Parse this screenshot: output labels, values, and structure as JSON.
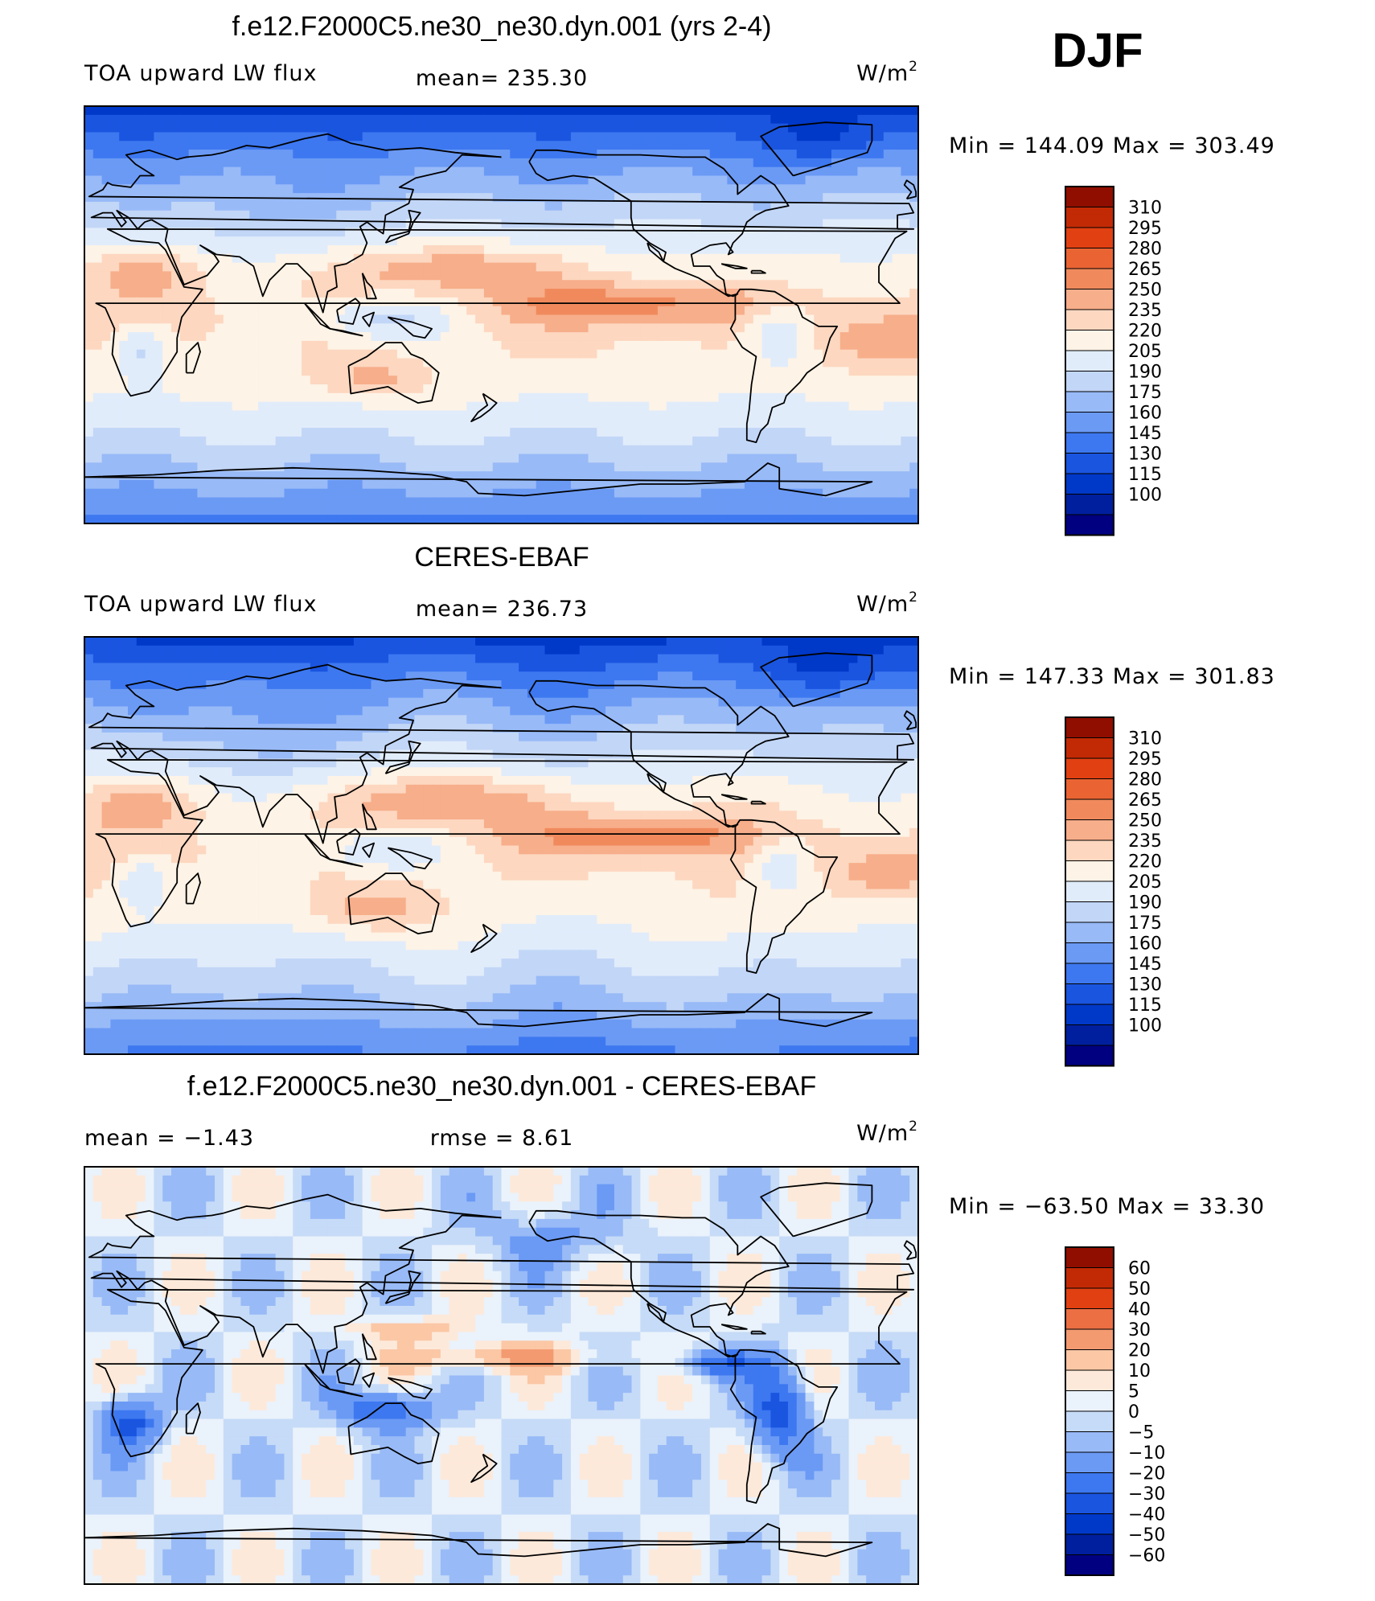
{
  "season": "DJF",
  "colors": {
    "abs": [
      "#000080",
      "#001f9e",
      "#0038c8",
      "#1a55e0",
      "#3d78f0",
      "#6b9af5",
      "#98baf7",
      "#c2d6f7",
      "#e1ecfb",
      "#fdf3e6",
      "#fdd7c0",
      "#f7ae8a",
      "#f08a5d",
      "#ea6433",
      "#e14012",
      "#c22a05",
      "#8f0e00"
    ],
    "diff": [
      "#000080",
      "#001f9e",
      "#0038c8",
      "#1a55e0",
      "#3d78f0",
      "#6b9af5",
      "#98baf7",
      "#c6dbf7",
      "#eaf2fb",
      "#fde9da",
      "#fbc7a5",
      "#f39a71",
      "#ec6f43",
      "#e14012",
      "#c22a05",
      "#8f0e00"
    ]
  },
  "panels": [
    {
      "title": "f.e12.F2000C5.ne30_ne30.dyn.001 (yrs 2-4)",
      "left": "TOA upward LW flux",
      "center": "mean=  235.30",
      "units_base": "W/m",
      "units_exp": "2",
      "minmax": "Min  =  144.09  Max  =  303.49"
    },
    {
      "title": "CERES-EBAF",
      "left": "TOA upward LW flux",
      "center": "mean=  236.73",
      "units_base": "W/m",
      "units_exp": "2",
      "minmax": "Min  =  147.33  Max  =  301.83"
    },
    {
      "title": "f.e12.F2000C5.ne30_ne30.dyn.001 - CERES-EBAF",
      "left": "mean  =    −1.43",
      "center": "rmse  =     8.61",
      "units_base": "W/m",
      "units_exp": "2",
      "minmax": "Min  =  −63.50  Max  =    33.30"
    }
  ],
  "chart_data": [
    {
      "type": "heatmap",
      "title": "f.e12.F2000C5.ne30_ne30.dyn.001 (yrs 2-4)",
      "variable": "TOA upward LW flux",
      "mean": 235.3,
      "min": 144.09,
      "max": 303.49,
      "units": "W/m2",
      "colorbar_levels": [
        "310",
        "295",
        "280",
        "265",
        "250",
        "235",
        "220",
        "205",
        "190",
        "175",
        "160",
        "145",
        "130",
        "115",
        "100"
      ]
    },
    {
      "type": "heatmap",
      "title": "CERES-EBAF",
      "variable": "TOA upward LW flux",
      "mean": 236.73,
      "min": 147.33,
      "max": 301.83,
      "units": "W/m2",
      "colorbar_levels": [
        "310",
        "295",
        "280",
        "265",
        "250",
        "235",
        "220",
        "205",
        "190",
        "175",
        "160",
        "145",
        "130",
        "115",
        "100"
      ]
    },
    {
      "type": "heatmap",
      "title": "f.e12.F2000C5.ne30_ne30.dyn.001 - CERES-EBAF",
      "mean": -1.43,
      "rmse": 8.61,
      "min": -63.5,
      "max": 33.3,
      "units": "W/m2",
      "colorbar_levels": [
        "60",
        "50",
        "40",
        "30",
        "20",
        "10",
        "5",
        "0",
        "−5",
        "−10",
        "−20",
        "−30",
        "−40",
        "−50",
        "−60"
      ]
    }
  ]
}
